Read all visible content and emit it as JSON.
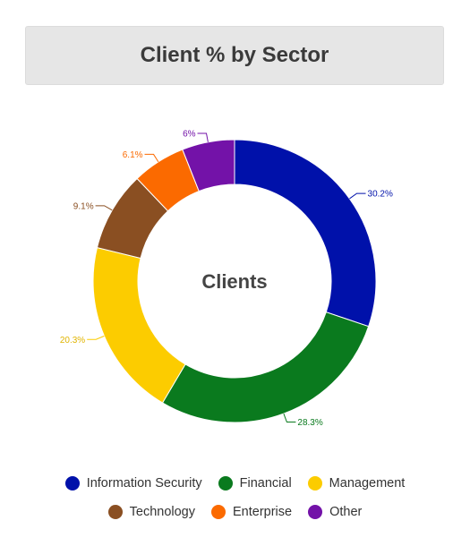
{
  "title": "Client % by Sector",
  "chart_data": {
    "type": "donut",
    "center_label": "Clients",
    "categories": [
      "Information Security",
      "Financial",
      "Management",
      "Technology",
      "Enterprise",
      "Other"
    ],
    "values": [
      30.2,
      28.3,
      20.3,
      9.1,
      6.1,
      6
    ],
    "data_labels": [
      "30.2%",
      "28.3%",
      "20.3%",
      "9.1%",
      "6.1%",
      "6%"
    ],
    "colors": [
      "#0011aa",
      "#0a7a1e",
      "#fccc00",
      "#8a4f22",
      "#fb6a00",
      "#7312a8"
    ],
    "legend_position": "bottom"
  }
}
